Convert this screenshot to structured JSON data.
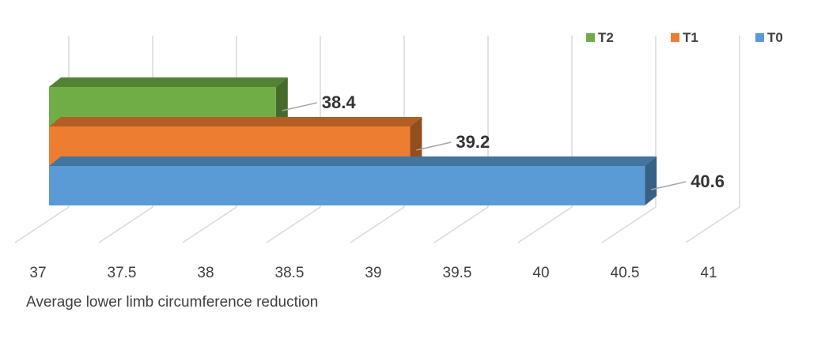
{
  "chart_data": {
    "type": "bar",
    "orientation": "horizontal",
    "style": "3d",
    "categories": [
      "T2",
      "T1",
      "T0"
    ],
    "values": [
      38.4,
      39.2,
      40.6
    ],
    "colors": {
      "T2": "#70ad47",
      "T1": "#ed7d31",
      "T0": "#5b9bd5"
    },
    "data_labels": [
      "38.4",
      "39.2",
      "40.6"
    ],
    "xlabel": "Average lower limb circumference reduction",
    "ylabel": "",
    "title": "",
    "xlim": [
      37,
      41
    ],
    "x_ticks": [
      "37",
      "37.5",
      "38",
      "38.5",
      "39",
      "39.5",
      "40",
      "40.5",
      "41"
    ],
    "grid": true,
    "legend": {
      "position": "top-right",
      "entries": [
        "T2",
        "T1",
        "T0"
      ]
    }
  }
}
